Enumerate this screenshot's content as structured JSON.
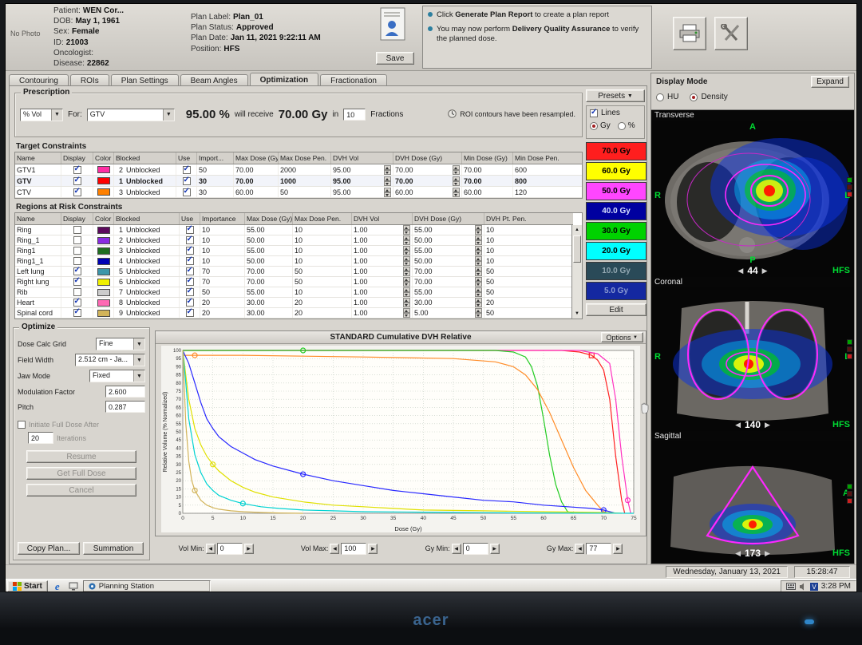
{
  "tabs": [
    {
      "label": "Contouring"
    },
    {
      "label": "ROIs"
    },
    {
      "label": "Plan Settings"
    },
    {
      "label": "Beam Angles"
    },
    {
      "label": "Optimization",
      "selected": true
    },
    {
      "label": "Fractionation"
    }
  ],
  "header": {
    "no_photo": "No Photo",
    "fields_left": [
      {
        "label": "Patient:",
        "value": "WEN Cor..."
      },
      {
        "label": "DOB:",
        "value": "May 1, 1961"
      },
      {
        "label": "Sex:",
        "value": "Female"
      },
      {
        "label": "ID:",
        "value": "21003"
      },
      {
        "label": "Oncologist:",
        "value": ""
      },
      {
        "label": "Disease:",
        "value": "22862"
      }
    ],
    "fields_right": [
      {
        "label": "Plan Label:",
        "value": "Plan_01"
      },
      {
        "label": "Plan Status:",
        "value": "Approved"
      },
      {
        "label": "Plan Date:",
        "value": "Jan 11, 2021 9:22:11 AM"
      },
      {
        "label": "Position:",
        "value": "HFS"
      }
    ],
    "save_label": "Save",
    "notices": [
      {
        "pre": "Click ",
        "bold": "Generate Plan Report",
        "post": " to create a plan report"
      },
      {
        "pre": "You may now perform ",
        "bold": "Delivery Quality Assurance",
        "post": " to verify the planned dose."
      }
    ]
  },
  "toolbar": {
    "presets_label": "Presets",
    "lines_label": "Lines",
    "unit_gy": "Gy",
    "unit_percent": "%",
    "unit_selected": "Gy"
  },
  "prescription": {
    "title": "Prescription",
    "mode_value": "% Vol",
    "for_label": "For:",
    "roi_value": "GTV",
    "percent": "95.00 %",
    "will_receive": "will receive",
    "dose": "70.00 Gy",
    "in_label": "in",
    "fractions_value": "10",
    "fractions_label": "Fractions",
    "resampled_note": "ROI contours have been resampled."
  },
  "target_constraints": {
    "title": "Target Constraints",
    "columns": [
      "Name",
      "Display",
      "Color",
      "Blocked",
      "Use",
      "Import...",
      "Max Dose (Gy)",
      "Max Dose Pen.",
      "DVH Vol",
      "DVH Dose (Gy)",
      "Min Dose (Gy)",
      "Min Dose Pen."
    ],
    "rows": [
      {
        "name": "GTV1",
        "display": true,
        "color": "#ff2fa4",
        "order": "2",
        "blocked": "Unblocked",
        "use": true,
        "importance": "50",
        "max_dose": "70.00",
        "max_pen": "2000",
        "dvh_vol": "95.00",
        "dvh_dose": "70.00",
        "min_dose": "70.00",
        "min_pen": "600"
      },
      {
        "name": "GTV",
        "display": true,
        "color": "#ff0000",
        "order": "1",
        "blocked": "Unblocked",
        "use": true,
        "importance": "30",
        "max_dose": "70.00",
        "max_pen": "1000",
        "dvh_vol": "95.00",
        "dvh_dose": "70.00",
        "min_dose": "70.00",
        "min_pen": "800",
        "selected": true
      },
      {
        "name": "CTV",
        "display": true,
        "color": "#ff8000",
        "order": "3",
        "blocked": "Unblocked",
        "use": true,
        "importance": "30",
        "max_dose": "60.00",
        "max_pen": "50",
        "dvh_vol": "95.00",
        "dvh_dose": "60.00",
        "min_dose": "60.00",
        "min_pen": "120"
      }
    ]
  },
  "regions_constraints": {
    "title": "Regions at Risk Constraints",
    "columns": [
      "Name",
      "Display",
      "Color",
      "Blocked",
      "Use",
      "Importance",
      "Max Dose (Gy)",
      "Max Dose Pen.",
      "DVH Vol",
      "DVH Dose (Gy)",
      "DVH Pt. Pen."
    ],
    "rows": [
      {
        "name": "Ring",
        "display": false,
        "color": "#5c0a5c",
        "order": "1",
        "blocked": "Unblocked",
        "use": true,
        "importance": "10",
        "max_dose": "55.00",
        "max_pen": "10",
        "dvh_vol": "1.00",
        "dvh_dose": "55.00",
        "pt_pen": "10"
      },
      {
        "name": "Ring_1",
        "display": false,
        "color": "#8a2be2",
        "order": "2",
        "blocked": "Unblocked",
        "use": true,
        "importance": "10",
        "max_dose": "50.00",
        "max_pen": "10",
        "dvh_vol": "1.00",
        "dvh_dose": "50.00",
        "pt_pen": "10"
      },
      {
        "name": "Ring1",
        "display": false,
        "color": "#1f6e1f",
        "order": "3",
        "blocked": "Unblocked",
        "use": true,
        "importance": "10",
        "max_dose": "55.00",
        "max_pen": "10",
        "dvh_vol": "1.00",
        "dvh_dose": "55.00",
        "pt_pen": "10"
      },
      {
        "name": "Ring1_1",
        "display": false,
        "color": "#0000b4",
        "order": "4",
        "blocked": "Unblocked",
        "use": true,
        "importance": "10",
        "max_dose": "50.00",
        "max_pen": "10",
        "dvh_vol": "1.00",
        "dvh_dose": "50.00",
        "pt_pen": "10"
      },
      {
        "name": "Left lung",
        "display": true,
        "color": "#3c96aa",
        "order": "5",
        "blocked": "Unblocked",
        "use": true,
        "importance": "70",
        "max_dose": "70.00",
        "max_pen": "50",
        "dvh_vol": "1.00",
        "dvh_dose": "70.00",
        "pt_pen": "50"
      },
      {
        "name": "Right lung",
        "display": true,
        "color": "#f0f000",
        "order": "6",
        "blocked": "Unblocked",
        "use": true,
        "importance": "70",
        "max_dose": "70.00",
        "max_pen": "50",
        "dvh_vol": "1.00",
        "dvh_dose": "70.00",
        "pt_pen": "50"
      },
      {
        "name": "Rib",
        "display": false,
        "color": "#cccccc",
        "order": "7",
        "blocked": "Unblocked",
        "use": true,
        "importance": "50",
        "max_dose": "55.00",
        "max_pen": "10",
        "dvh_vol": "1.00",
        "dvh_dose": "55.00",
        "pt_pen": "50"
      },
      {
        "name": "Heart",
        "display": true,
        "color": "#ff69b4",
        "order": "8",
        "blocked": "Unblocked",
        "use": true,
        "importance": "20",
        "max_dose": "30.00",
        "max_pen": "20",
        "dvh_vol": "1.00",
        "dvh_dose": "30.00",
        "pt_pen": "20"
      },
      {
        "name": "Spinal cord",
        "display": true,
        "color": "#d2b45a",
        "order": "9",
        "blocked": "Unblocked",
        "use": true,
        "importance": "20",
        "max_dose": "30.00",
        "max_pen": "20",
        "dvh_vol": "1.00",
        "dvh_dose": "5.00",
        "pt_pen": "50"
      }
    ]
  },
  "dose_legend": {
    "items": [
      {
        "label": "70.0 Gy",
        "color": "#ff1e1e",
        "text": "#000000"
      },
      {
        "label": "60.0 Gy",
        "color": "#ffff00",
        "text": "#000000"
      },
      {
        "label": "50.0 Gy",
        "color": "#ff46ff",
        "text": "#000000"
      },
      {
        "label": "40.0 Gy",
        "color": "#0000a0",
        "text": "#d8e2ff"
      },
      {
        "label": "30.0 Gy",
        "color": "#00d200",
        "text": "#000000"
      },
      {
        "label": "20.0 Gy",
        "color": "#00ffff",
        "text": "#000000"
      },
      {
        "label": "10.0 Gy",
        "color": "#2a4a58",
        "text": "#93a8b2"
      },
      {
        "label": "5.0 Gy",
        "color": "#1428a0",
        "text": "#8c9cd2"
      }
    ],
    "edit_label": "Edit"
  },
  "optimize": {
    "title": "Optimize",
    "dose_calc_grid": {
      "label": "Dose Calc Grid",
      "value": "Fine"
    },
    "field_width": {
      "label": "Field Width",
      "value": "2.512 cm - Ja..."
    },
    "jaw_mode": {
      "label": "Jaw Mode",
      "value": "Fixed"
    },
    "modulation_factor": {
      "label": "Modulation Factor",
      "value": "2.600"
    },
    "pitch": {
      "label": "Pitch",
      "value": "0.287"
    },
    "full_dose_label": "Initiate Full Dose After",
    "iterations_value": "20",
    "iterations_label": "Iterations",
    "buttons": {
      "resume": "Resume",
      "get_full_dose": "Get Full Dose",
      "cancel": "Cancel",
      "copy_plan": "Copy Plan...",
      "summation": "Summation"
    }
  },
  "dvh": {
    "title": "STANDARD Cumulative DVH Relative",
    "options_label": "Options",
    "controls": [
      {
        "label": "Vol Min:",
        "value": "0"
      },
      {
        "label": "Vol Max:",
        "value": "100"
      },
      {
        "label": "Gy Min:",
        "value": "0"
      },
      {
        "label": "Gy Max:",
        "value": "77"
      }
    ]
  },
  "chart_data": {
    "type": "line",
    "title": "STANDARD Cumulative DVH Relative",
    "xlabel": "Dose (Gy)",
    "ylabel": "Relative Volume (% Normalized)",
    "xlim": [
      0,
      75
    ],
    "ylim": [
      0,
      100
    ],
    "x_tick_step": 5,
    "y_tick_step": 5,
    "grid": true,
    "legend": "none",
    "series": [
      {
        "name": "GTV",
        "color": "#ff2020",
        "marker_shape": "square",
        "markers": [
          [
            68,
            97
          ]
        ],
        "points": [
          [
            0,
            100
          ],
          [
            55,
            100
          ],
          [
            63,
            100
          ],
          [
            66,
            99
          ],
          [
            68,
            97
          ],
          [
            69,
            94
          ],
          [
            70,
            88
          ],
          [
            71,
            70
          ],
          [
            72,
            35
          ],
          [
            73,
            8
          ],
          [
            73.5,
            0
          ]
        ]
      },
      {
        "name": "GTV1",
        "color": "#ff30c0",
        "markers": [
          [
            74,
            8
          ]
        ],
        "points": [
          [
            0,
            100
          ],
          [
            60,
            100
          ],
          [
            66,
            100
          ],
          [
            69,
            98
          ],
          [
            71,
            92
          ],
          [
            72,
            70
          ],
          [
            73,
            35
          ],
          [
            74,
            8
          ],
          [
            74.5,
            0
          ]
        ]
      },
      {
        "name": "CTV",
        "color": "#22cc22",
        "markers": [
          [
            20,
            100
          ]
        ],
        "points": [
          [
            0,
            100
          ],
          [
            45,
            100
          ],
          [
            52,
            100
          ],
          [
            55,
            99
          ],
          [
            57,
            96
          ],
          [
            58,
            90
          ],
          [
            59,
            78
          ],
          [
            60,
            58
          ],
          [
            61,
            36
          ],
          [
            62,
            18
          ],
          [
            63,
            7
          ],
          [
            64,
            1
          ],
          [
            65,
            0
          ]
        ]
      },
      {
        "name": "Ring",
        "color": "#ff8c28",
        "markers": [
          [
            2,
            97
          ]
        ],
        "points": [
          [
            0,
            97
          ],
          [
            10,
            97
          ],
          [
            30,
            96
          ],
          [
            45,
            95
          ],
          [
            52,
            93
          ],
          [
            55,
            90
          ],
          [
            57,
            85
          ],
          [
            59,
            76
          ],
          [
            61,
            62
          ],
          [
            63,
            45
          ],
          [
            65,
            28
          ],
          [
            67,
            14
          ],
          [
            69,
            5
          ],
          [
            70,
            1
          ],
          [
            71,
            0
          ]
        ]
      },
      {
        "name": "Left lung",
        "color": "#2828ff",
        "markers": [
          [
            20,
            24
          ],
          [
            70,
            2
          ]
        ],
        "points": [
          [
            0,
            100
          ],
          [
            1,
            92
          ],
          [
            2,
            80
          ],
          [
            3,
            68
          ],
          [
            4,
            58
          ],
          [
            5,
            52
          ],
          [
            6,
            47
          ],
          [
            8,
            41
          ],
          [
            10,
            37
          ],
          [
            12,
            33
          ],
          [
            15,
            29
          ],
          [
            20,
            24
          ],
          [
            25,
            20
          ],
          [
            30,
            17
          ],
          [
            35,
            14
          ],
          [
            40,
            12
          ],
          [
            45,
            10
          ],
          [
            50,
            8
          ],
          [
            55,
            7
          ],
          [
            60,
            5
          ],
          [
            64,
            4
          ],
          [
            68,
            3
          ],
          [
            70,
            2
          ],
          [
            71,
            1
          ],
          [
            72,
            0
          ]
        ]
      },
      {
        "name": "Right lung",
        "color": "#e0e000",
        "markers": [
          [
            5,
            30
          ]
        ],
        "points": [
          [
            0,
            100
          ],
          [
            1,
            70
          ],
          [
            2,
            52
          ],
          [
            3,
            42
          ],
          [
            4,
            35
          ],
          [
            5,
            30
          ],
          [
            6,
            26
          ],
          [
            8,
            20
          ],
          [
            10,
            16
          ],
          [
            12,
            13
          ],
          [
            15,
            10
          ],
          [
            20,
            7
          ],
          [
            25,
            5
          ],
          [
            30,
            4
          ],
          [
            35,
            3
          ],
          [
            40,
            2
          ],
          [
            50,
            1.5
          ],
          [
            60,
            1
          ],
          [
            70,
            0.5
          ],
          [
            73,
            0
          ]
        ]
      },
      {
        "name": "Heart",
        "color": "#00d2d2",
        "markers": [
          [
            10,
            6
          ]
        ],
        "points": [
          [
            0,
            100
          ],
          [
            0.5,
            80
          ],
          [
            1,
            58
          ],
          [
            2,
            36
          ],
          [
            3,
            25
          ],
          [
            4,
            18
          ],
          [
            5,
            14
          ],
          [
            6,
            11
          ],
          [
            8,
            8
          ],
          [
            10,
            6
          ],
          [
            13,
            4
          ],
          [
            16,
            3
          ],
          [
            20,
            2
          ],
          [
            25,
            1.5
          ],
          [
            30,
            1
          ],
          [
            40,
            0.7
          ],
          [
            50,
            0.4
          ],
          [
            60,
            0.2
          ],
          [
            70,
            0.1
          ],
          [
            75,
            0
          ]
        ]
      },
      {
        "name": "Spinal cord",
        "color": "#d2b45a",
        "markers": [
          [
            2,
            14
          ]
        ],
        "points": [
          [
            0,
            100
          ],
          [
            0.5,
            55
          ],
          [
            1,
            32
          ],
          [
            1.5,
            20
          ],
          [
            2,
            14
          ],
          [
            3,
            8
          ],
          [
            4,
            5
          ],
          [
            5,
            3.5
          ],
          [
            6,
            2.5
          ],
          [
            8,
            1.5
          ],
          [
            10,
            1
          ],
          [
            13,
            0.5
          ],
          [
            16,
            0.2
          ],
          [
            20,
            0
          ]
        ]
      }
    ]
  },
  "display_mode": {
    "title": "Display Mode",
    "hu_label": "HU",
    "density_label": "Density",
    "selected": "Density",
    "expand_label": "Expand",
    "views": [
      {
        "name": "Transverse",
        "slice": "44",
        "orientation": "HFS",
        "letters": {
          "top": "A",
          "left": "R",
          "right": "L",
          "bottom": "P"
        }
      },
      {
        "name": "Coronal",
        "slice": "140",
        "orientation": "HFS",
        "letters": {
          "left": "R",
          "right": "L"
        }
      },
      {
        "name": "Sagittal",
        "slice": "173",
        "orientation": "HFS",
        "letters": {
          "right": "A"
        }
      }
    ]
  },
  "status_bar": {
    "date": "Wednesday, January 13, 2021",
    "time": "15:28:47"
  },
  "taskbar": {
    "start": "Start",
    "task": "Planning Station",
    "tray_time": "3:28 PM"
  },
  "monitor": {
    "brand": "acer"
  }
}
